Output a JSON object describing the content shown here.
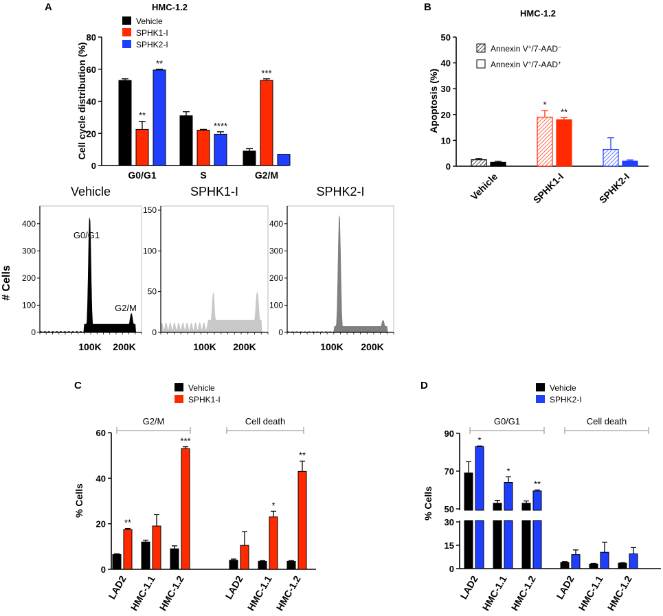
{
  "chart_data": [
    {
      "panel": "A",
      "type": "bar",
      "title": "HMC-1.2",
      "ylabel": "Cell cycle distribution (%)",
      "ylim": [
        0,
        80
      ],
      "yticks": [
        0,
        20,
        40,
        60,
        80
      ],
      "categories": [
        "G0/G1",
        "S",
        "G2/M"
      ],
      "series": [
        {
          "name": "Vehicle",
          "color": "#000000",
          "values": [
            53,
            31,
            9
          ],
          "errors": [
            1,
            2.5,
            1.5
          ],
          "stars": [
            "",
            "",
            ""
          ]
        },
        {
          "name": "SPHK1-I",
          "color": "#ff2a00",
          "values": [
            22.5,
            22,
            53
          ],
          "errors": [
            5,
            0.5,
            1
          ],
          "stars": [
            "**",
            "",
            "***"
          ]
        },
        {
          "name": "SPHK2-I",
          "color": "#1f3fff",
          "values": [
            59.5,
            19.5,
            7
          ],
          "errors": [
            0.5,
            1.5,
            0
          ],
          "stars": [
            "**",
            "****",
            ""
          ]
        }
      ]
    },
    {
      "panel": "B",
      "type": "bar",
      "title": "HMC-1.2",
      "ylabel": "Apoptosis (%)",
      "ylim": [
        0,
        50
      ],
      "yticks": [
        0,
        10,
        20,
        30,
        40,
        50
      ],
      "categories": [
        "Vehicle",
        "SPHK1-I",
        "SPHK2-I"
      ],
      "legend": [
        {
          "label": "Annexin V",
          "sup1": "+",
          "mid": "/7-AAD",
          "sup2": "−",
          "pattern": "hatched"
        },
        {
          "label": "Annexin V",
          "sup1": "+",
          "mid": "/7-AAD",
          "sup2": "+",
          "pattern": "open"
        }
      ],
      "groups": [
        {
          "category": "Vehicle",
          "color": "#000000",
          "hatched": 2.5,
          "hatched_err": 0.5,
          "solid": 1.5,
          "solid_err": 0.4,
          "stars": [
            "",
            ""
          ]
        },
        {
          "category": "SPHK1-I",
          "color": "#ff2a00",
          "hatched": 19,
          "hatched_err": 2.5,
          "solid": 18,
          "solid_err": 0.8,
          "stars": [
            "*",
            "**"
          ]
        },
        {
          "category": "SPHK2-I",
          "color": "#1f3fff",
          "hatched": 6.5,
          "hatched_err": 4.5,
          "solid": 2,
          "solid_err": 0.4,
          "stars": [
            "",
            ""
          ]
        }
      ]
    },
    {
      "panel": "A-histograms",
      "type": "area",
      "ylabel": "# Cells",
      "xticks": [
        "100K",
        "200K"
      ],
      "plots": [
        {
          "title": "Vehicle",
          "color": "#000000",
          "ymax": 450,
          "yticks": [
            0,
            100,
            200,
            300,
            400
          ],
          "peak_labels": [
            "G0/G1",
            "G2/M"
          ],
          "g1": 430,
          "g2": 70,
          "s": 30,
          "floor": 4
        },
        {
          "title": "SPHK1-I",
          "color": "#c8c8c8",
          "ymax": 150,
          "yticks": [
            0,
            50,
            100,
            150
          ],
          "peak_labels": [],
          "g1": 50,
          "g2": 50,
          "s": 15,
          "floor": 12
        },
        {
          "title": "SPHK2-I",
          "color": "#808080",
          "ymax": 450,
          "yticks": [
            0,
            100,
            200,
            300,
            400
          ],
          "peak_labels": [],
          "g1": 440,
          "g2": 45,
          "s": 22,
          "floor": 4
        }
      ]
    },
    {
      "panel": "C",
      "type": "bar",
      "ylabel": "% Cells",
      "ylim": [
        0,
        60
      ],
      "yticks": [
        0,
        20,
        40,
        60
      ],
      "legend": [
        "Vehicle",
        "SPHK1-I"
      ],
      "colors": [
        "#000000",
        "#ff2a00"
      ],
      "bracket_labels": [
        "G2/M",
        "Cell death"
      ],
      "categories": [
        "LAD2",
        "HMC-1.1",
        "HMC-1.2",
        "LAD2",
        "HMC-1.1",
        "HMC-1.2"
      ],
      "series": [
        {
          "name": "Vehicle",
          "values": [
            6.5,
            12,
            9,
            4,
            3.5,
            3.5
          ],
          "errors": [
            0.3,
            0.8,
            1.3,
            0.5,
            0.3,
            0.3
          ],
          "stars": [
            "",
            "",
            "",
            "",
            "",
            ""
          ]
        },
        {
          "name": "SPHK1-I",
          "values": [
            17.5,
            19,
            53,
            10.5,
            23,
            43
          ],
          "errors": [
            0.4,
            5,
            0.8,
            6,
            2.5,
            4.5
          ],
          "stars": [
            "**",
            "",
            "***",
            "",
            "*",
            "**"
          ]
        }
      ]
    },
    {
      "panel": "D",
      "type": "bar",
      "ylabel": "% Cells",
      "axis_break": [
        30,
        50
      ],
      "yticks": [
        0,
        15,
        30,
        50,
        70,
        90
      ],
      "legend": [
        "Vehicle",
        "SPHK2-I"
      ],
      "colors": [
        "#000000",
        "#1f3fff"
      ],
      "bracket_labels": [
        "G0/G1",
        "Cell death"
      ],
      "categories": [
        "LAD2",
        "HMC-1.1",
        "HMC-1.2",
        "LAD2",
        "HMC-1.1",
        "HMC-1.2"
      ],
      "series": [
        {
          "name": "Vehicle",
          "values": [
            69,
            53,
            53,
            4,
            3,
            3.5
          ],
          "errors": [
            6,
            1.5,
            1.2,
            0.5,
            0.3,
            0.3
          ],
          "stars": [
            "",
            "",
            "",
            "",
            "",
            ""
          ]
        },
        {
          "name": "SPHK2-I",
          "values": [
            83,
            64,
            59.5,
            9,
            10.5,
            9.5
          ],
          "errors": [
            0.3,
            3,
            0.5,
            3,
            6.5,
            4
          ],
          "stars": [
            "*",
            "*",
            "**",
            "",
            "",
            ""
          ]
        }
      ]
    }
  ],
  "panel_letters": [
    "A",
    "B",
    "C",
    "D"
  ]
}
